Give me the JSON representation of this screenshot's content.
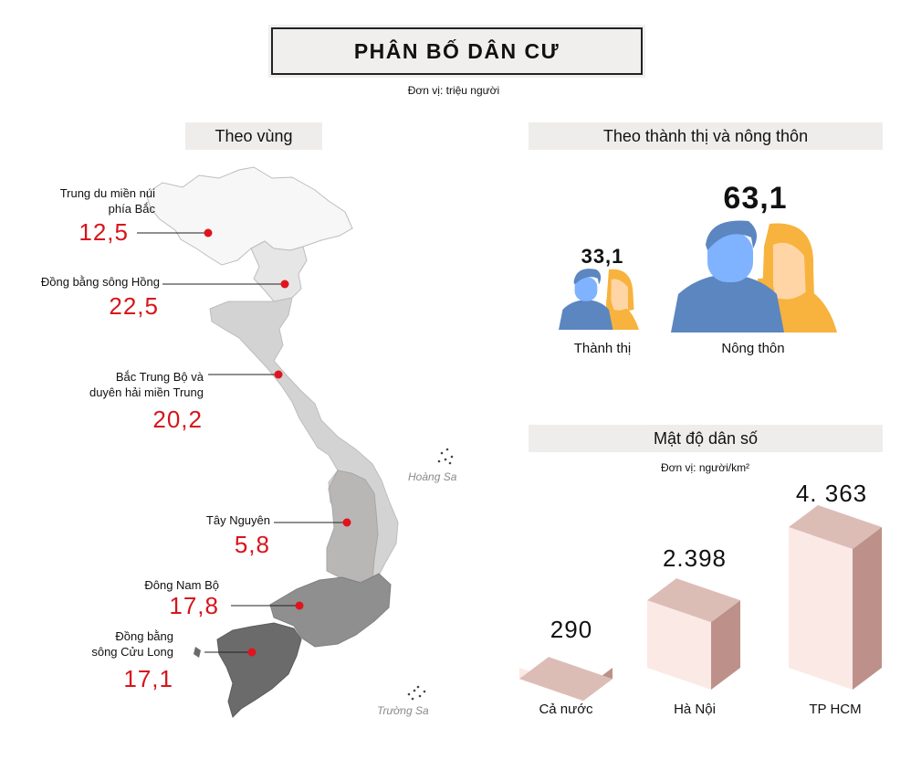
{
  "header": {
    "title": "PHÂN BỐ DÂN CƯ",
    "unit": "Đơn vị: triệu người"
  },
  "regions": {
    "heading": "Theo vùng",
    "items": [
      {
        "name_lines": [
          "Trung du miền núi",
          "phía Bắc"
        ],
        "value": "12,5",
        "fill": "#f7f7f7"
      },
      {
        "name_lines": [
          "Đồng bằng sông Hồng"
        ],
        "value": "22,5",
        "fill": "#e6e6e6"
      },
      {
        "name_lines": [
          "Bắc Trung Bộ và",
          "duyên hải miền Trung"
        ],
        "value": "20,2",
        "fill": "#d3d3d3"
      },
      {
        "name_lines": [
          "Tây Nguyên"
        ],
        "value": "5,8",
        "fill": "#b9b6b6"
      },
      {
        "name_lines": [
          "Đông Nam Bộ"
        ],
        "value": "17,8",
        "fill": "#8f8f8f"
      },
      {
        "name_lines": [
          "Đồng bằng",
          "sông Cửu Long"
        ],
        "value": "17,1",
        "fill": "#6b6b6b"
      }
    ],
    "islands": [
      "Hoàng Sa",
      "Trường Sa"
    ]
  },
  "urban_rural": {
    "heading": "Theo thành thị và nông thôn",
    "urban": {
      "label": "Thành thị",
      "value": "33,1"
    },
    "rural": {
      "label": "Nông thôn",
      "value": "63,1"
    },
    "colors": {
      "male": "#5b86c0",
      "male_face": "#7fb3ff",
      "female": "#f7b33d",
      "female_face": "#ffd5a6"
    }
  },
  "density": {
    "heading": "Mật độ dân số",
    "unit": "Đơn vị: người/km²",
    "colors": {
      "front": "#fbe9e6",
      "top": "#dcbdb6",
      "side": "#bd918a"
    }
  },
  "chart_data": {
    "type": "bar",
    "categories": [
      "Cả nước",
      "Hà Nội",
      "TP HCM"
    ],
    "values": [
      290,
      2398,
      4363
    ],
    "value_labels": [
      "290",
      "2.398",
      "4. 363"
    ],
    "title": "Mật độ dân số",
    "ylabel": "",
    "xlabel": ""
  }
}
